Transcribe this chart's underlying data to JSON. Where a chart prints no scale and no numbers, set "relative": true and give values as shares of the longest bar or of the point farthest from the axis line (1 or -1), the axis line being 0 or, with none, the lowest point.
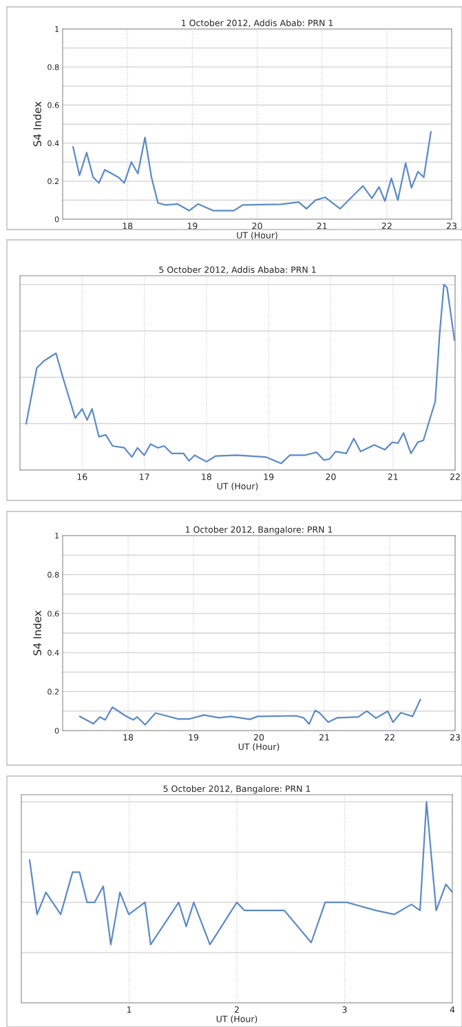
{
  "chart_data": [
    {
      "type": "line",
      "title": "1 October 2012, Addis Abab: PRN 1",
      "xlabel": "UT (Hour)",
      "ylabel": "S4 Index",
      "xlim": [
        17,
        23
      ],
      "xticks": [
        18,
        19,
        20,
        21,
        22,
        23
      ],
      "ylim": [
        0,
        1
      ],
      "yticks": [
        0,
        {
          "value": 0.1,
          "label": null
        },
        0.2,
        {
          "value": 0.3,
          "label": null
        },
        0.4,
        {
          "value": 0.5,
          "label": null
        },
        0.6,
        {
          "value": 0.7,
          "label": null
        },
        0.8,
        {
          "value": 0.9,
          "label": null
        },
        1
      ],
      "grid": true,
      "series": [
        {
          "color": "#5b8ac6",
          "x": [
            17.16,
            17.26,
            17.37,
            17.47,
            17.56,
            17.65,
            17.86,
            17.95,
            18.06,
            18.16,
            18.27,
            18.37,
            18.47,
            18.59,
            18.77,
            18.95,
            19.09,
            19.32,
            19.64,
            19.78,
            20.37,
            20.64,
            20.76,
            20.9,
            21.05,
            21.28,
            21.63,
            21.77,
            21.88,
            21.97,
            22.07,
            22.17,
            22.29,
            22.38,
            22.48,
            22.57,
            22.68
          ],
          "values": [
            0.38,
            0.23,
            0.35,
            0.22,
            0.19,
            0.26,
            0.22,
            0.19,
            0.3,
            0.24,
            0.43,
            0.22,
            0.085,
            0.075,
            0.08,
            0.045,
            0.08,
            0.045,
            0.045,
            0.075,
            0.078,
            0.09,
            0.055,
            0.1,
            0.115,
            0.055,
            0.175,
            0.11,
            0.17,
            0.095,
            0.215,
            0.1,
            0.295,
            0.165,
            0.25,
            0.22,
            0.46
          ]
        }
      ]
    },
    {
      "type": "line",
      "title": "5 October 2012, Addis Ababa: PRN 1",
      "xlabel": "UT (Hour)",
      "relative": true,
      "xlim": [
        15,
        22
      ],
      "xticks": [
        16,
        17,
        18,
        19,
        20,
        21,
        22
      ],
      "grid": true,
      "tick_labels": "x",
      "series": [
        {
          "color": "#5b8ac6",
          "x": [
            15.1,
            15.27,
            15.39,
            15.58,
            15.69,
            15.89,
            16.0,
            16.08,
            16.16,
            16.27,
            16.38,
            16.49,
            16.68,
            16.8,
            16.89,
            17.0,
            17.1,
            17.22,
            17.32,
            17.44,
            17.63,
            17.72,
            17.81,
            18.0,
            18.15,
            18.49,
            18.96,
            19.2,
            19.34,
            19.58,
            19.77,
            19.89,
            19.98,
            20.08,
            20.25,
            20.37,
            20.48,
            20.7,
            20.87,
            20.99,
            21.08,
            21.17,
            21.29,
            21.4,
            21.49,
            21.58,
            21.68,
            21.75,
            21.82,
            21.87,
            21.99
          ],
          "values": [
            0.25,
            0.55,
            0.59,
            0.63,
            0.5,
            0.28,
            0.33,
            0.27,
            0.33,
            0.18,
            0.19,
            0.13,
            0.12,
            0.07,
            0.12,
            0.08,
            0.14,
            0.12,
            0.13,
            0.09,
            0.09,
            0.05,
            0.08,
            0.045,
            0.076,
            0.08,
            0.07,
            0.036,
            0.08,
            0.08,
            0.096,
            0.054,
            0.06,
            0.1,
            0.09,
            0.17,
            0.1,
            0.136,
            0.11,
            0.15,
            0.145,
            0.2,
            0.09,
            0.15,
            0.16,
            0.26,
            0.37,
            0.73,
            1.0,
            0.985,
            0.7
          ]
        }
      ]
    },
    {
      "type": "line",
      "title": "1 October 2012, Bangalore: PRN 1",
      "xlabel": "UT (Hour)",
      "ylabel": "S4 Index",
      "xlim": [
        17,
        23
      ],
      "xticks": [
        18,
        19,
        20,
        21,
        22,
        23
      ],
      "ylim": [
        0,
        1
      ],
      "yticks": [
        0,
        {
          "value": 0.1,
          "label": null
        },
        0.2,
        {
          "value": 0.3,
          "label": null
        },
        0.4,
        {
          "value": 0.5,
          "label": null
        },
        0.6,
        {
          "value": 0.7,
          "label": null
        },
        0.8,
        {
          "value": 0.9,
          "label": null
        },
        1
      ],
      "grid": true,
      "series": [
        {
          "color": "#5b8ac6",
          "x": [
            17.26,
            17.47,
            17.57,
            17.65,
            17.76,
            17.96,
            18.08,
            18.14,
            18.26,
            18.42,
            18.76,
            18.94,
            19.16,
            19.39,
            19.57,
            19.86,
            19.98,
            20.57,
            20.68,
            20.77,
            20.86,
            20.93,
            21.06,
            21.2,
            21.52,
            21.65,
            21.79,
            21.97,
            22.05,
            22.17,
            22.35,
            22.47
          ],
          "values": [
            0.073,
            0.035,
            0.07,
            0.055,
            0.12,
            0.076,
            0.055,
            0.07,
            0.03,
            0.09,
            0.06,
            0.06,
            0.08,
            0.066,
            0.073,
            0.058,
            0.073,
            0.076,
            0.066,
            0.034,
            0.104,
            0.09,
            0.043,
            0.066,
            0.07,
            0.1,
            0.064,
            0.1,
            0.043,
            0.092,
            0.073,
            0.16
          ]
        }
      ]
    },
    {
      "type": "line",
      "title": "5 October 2012, Bangalore: PRN 1",
      "xlabel": "UT (Hour)",
      "relative": true,
      "xlim": [
        0,
        4
      ],
      "xticks": [
        1,
        2,
        3,
        4
      ],
      "grid": true,
      "tick_labels": "x",
      "series": [
        {
          "color": "#5b8ac6",
          "x": [
            0.077,
            0.146,
            0.228,
            0.365,
            0.475,
            0.54,
            0.61,
            0.68,
            0.76,
            0.83,
            0.915,
            0.997,
            1.148,
            1.2,
            1.46,
            1.53,
            1.6,
            1.75,
            2.0,
            2.07,
            2.44,
            2.69,
            2.82,
            3.02,
            3.29,
            3.46,
            3.62,
            3.7,
            3.76,
            3.85,
            3.94,
            4.0
          ],
          "values": [
            0.71,
            0.44,
            0.55,
            0.44,
            0.65,
            0.65,
            0.5,
            0.5,
            0.58,
            0.29,
            0.55,
            0.44,
            0.5,
            0.29,
            0.5,
            0.38,
            0.5,
            0.29,
            0.5,
            0.46,
            0.46,
            0.3,
            0.5,
            0.5,
            0.46,
            0.44,
            0.49,
            0.46,
            1.0,
            0.46,
            0.59,
            0.55
          ]
        }
      ]
    }
  ]
}
